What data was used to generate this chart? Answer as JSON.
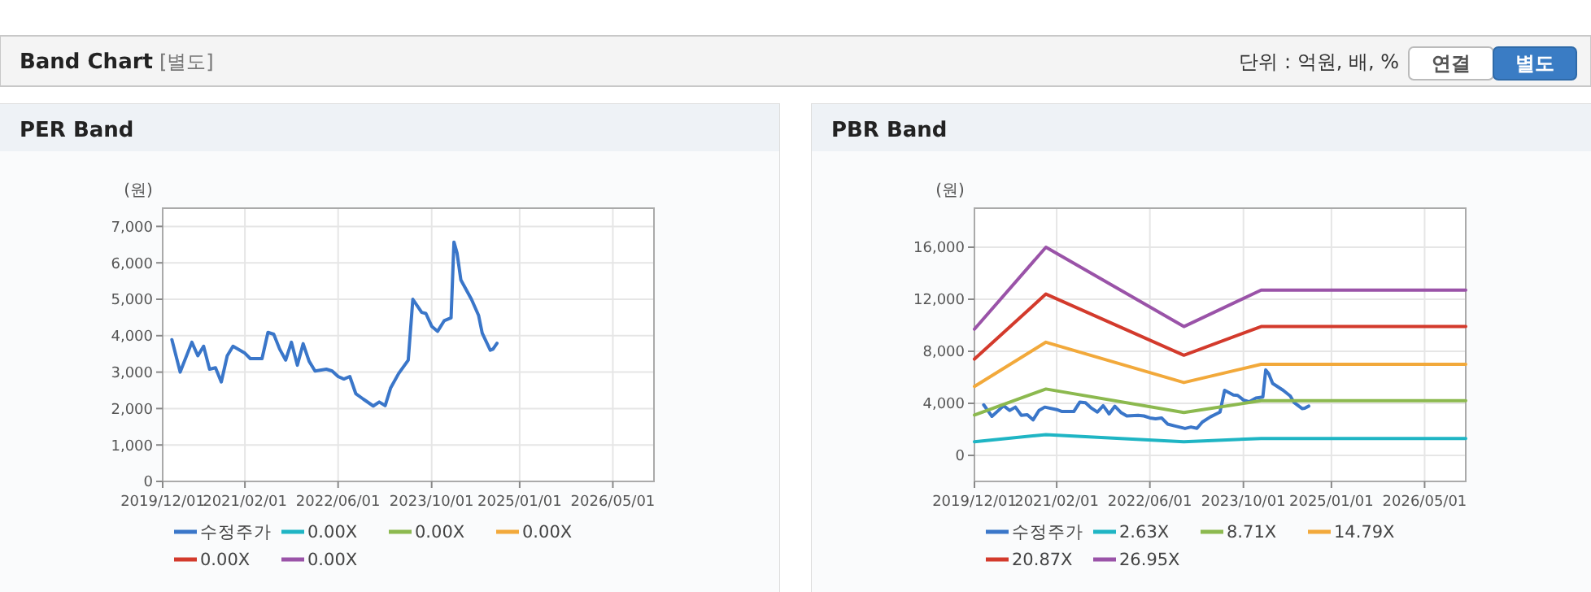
{
  "chart_data": [
    {
      "type": "other",
      "title": "Band Chart",
      "subtitle": "[별도]",
      "annotations": [
        "단위 : 억원, 배, %",
        "연결",
        "별도"
      ]
    },
    {
      "type": "line",
      "title": "PER Band",
      "ylabel": "(원)",
      "xlim": [
        "2019-12-01",
        "2026-12-01"
      ],
      "ylim": [
        0,
        7500
      ],
      "xticks": [
        {
          "value": "2019-12-01",
          "label": "2019/12/01"
        },
        {
          "value": "2021-02-01",
          "label": "2021/02/01"
        },
        {
          "value": "2022-06-01",
          "label": "2022/06/01"
        },
        {
          "value": "2023-10-01",
          "label": "2023/10/01"
        },
        {
          "value": "2025-01-01",
          "label": "2025/01/01"
        },
        {
          "value": "2026-05-01",
          "label": "2026/05/01"
        }
      ],
      "yticks": [
        {
          "value": 0,
          "label": "0"
        },
        {
          "value": 1000,
          "label": "1,000"
        },
        {
          "value": 2000,
          "label": "2,000"
        },
        {
          "value": 3000,
          "label": "3,000"
        },
        {
          "value": 4000,
          "label": "4,000"
        },
        {
          "value": 5000,
          "label": "5,000"
        },
        {
          "value": 6000,
          "label": "6,000"
        },
        {
          "value": 7000,
          "label": "7,000"
        }
      ],
      "grid": true,
      "legend": "bottom",
      "marker": "none",
      "line_style": "solid",
      "series": [
        {
          "name": "수정주가",
          "color": "#3a76c9",
          "x": [
            "2020-01-18",
            "2020-03-01",
            "2020-05-01",
            "2020-06-01",
            "2020-07-01",
            "2020-08-01",
            "2020-09-01",
            "2020-10-01",
            "2020-11-01",
            "2020-12-01",
            "2021-02-01",
            "2021-03-01",
            "2021-05-01",
            "2021-06-01",
            "2021-07-01",
            "2021-08-01",
            "2021-09-01",
            "2021-10-01",
            "2021-11-01",
            "2021-12-01",
            "2022-01-01",
            "2022-02-01",
            "2022-04-01",
            "2022-05-01",
            "2022-06-01",
            "2022-07-01",
            "2022-08-01",
            "2022-09-01",
            "2022-10-10",
            "2022-12-01",
            "2023-01-01",
            "2023-02-01",
            "2023-03-01",
            "2023-04-12",
            "2023-06-01",
            "2023-06-25",
            "2023-08-10",
            "2023-09-01",
            "2023-10-01",
            "2023-11-01",
            "2023-12-05",
            "2024-01-10",
            "2024-01-25",
            "2024-02-10",
            "2024-03-01",
            "2024-04-25",
            "2024-06-01",
            "2024-06-20",
            "2024-08-01",
            "2024-08-15",
            "2024-09-05"
          ],
          "values": [
            3890,
            3000,
            3820,
            3450,
            3710,
            3080,
            3120,
            2730,
            3450,
            3710,
            3520,
            3370,
            3370,
            4090,
            4040,
            3630,
            3330,
            3820,
            3190,
            3780,
            3300,
            3030,
            3080,
            3030,
            2880,
            2810,
            2880,
            2410,
            2260,
            2070,
            2180,
            2080,
            2560,
            2960,
            3330,
            5000,
            4640,
            4610,
            4260,
            4120,
            4410,
            4490,
            6570,
            6270,
            5530,
            5000,
            4560,
            4070,
            3600,
            3630,
            3790
          ]
        },
        {
          "name": "0.00X",
          "color": "#1fb5c4"
        },
        {
          "name": "0.00X",
          "color": "#8cb94f"
        },
        {
          "name": "0.00X",
          "color": "#f2a93b"
        },
        {
          "name": "0.00X",
          "color": "#d33a2c"
        },
        {
          "name": "0.00X",
          "color": "#9a53a8"
        }
      ]
    },
    {
      "type": "line",
      "title": "PBR Band",
      "ylabel": "(원)",
      "xlim": [
        "2019-12-01",
        "2026-12-01"
      ],
      "ylim": [
        -2000,
        19000
      ],
      "xticks": [
        {
          "value": "2019-12-01",
          "label": "2019/12/01"
        },
        {
          "value": "2021-02-01",
          "label": "2021/02/01"
        },
        {
          "value": "2022-06-01",
          "label": "2022/06/01"
        },
        {
          "value": "2023-10-01",
          "label": "2023/10/01"
        },
        {
          "value": "2025-01-01",
          "label": "2025/01/01"
        },
        {
          "value": "2026-05-01",
          "label": "2026/05/01"
        }
      ],
      "yticks": [
        {
          "value": 0,
          "label": "0"
        },
        {
          "value": 4000,
          "label": "4,000"
        },
        {
          "value": 8000,
          "label": "8,000"
        },
        {
          "value": 12000,
          "label": "12,000"
        },
        {
          "value": 16000,
          "label": "16,000"
        }
      ],
      "grid": true,
      "legend": "bottom",
      "marker": "none",
      "line_style": "solid",
      "series": [
        {
          "name": "수정주가",
          "color": "#3a76c9",
          "x": [
            "2020-01-18",
            "2020-03-01",
            "2020-05-01",
            "2020-06-01",
            "2020-07-01",
            "2020-08-01",
            "2020-09-01",
            "2020-10-01",
            "2020-11-01",
            "2020-12-01",
            "2021-02-01",
            "2021-03-01",
            "2021-05-01",
            "2021-06-01",
            "2021-07-01",
            "2021-08-01",
            "2021-09-01",
            "2021-10-01",
            "2021-11-01",
            "2021-12-01",
            "2022-01-01",
            "2022-02-01",
            "2022-04-01",
            "2022-05-01",
            "2022-06-01",
            "2022-07-01",
            "2022-08-01",
            "2022-09-01",
            "2022-10-10",
            "2022-12-01",
            "2023-01-01",
            "2023-02-01",
            "2023-03-01",
            "2023-04-12",
            "2023-06-01",
            "2023-06-25",
            "2023-08-10",
            "2023-09-01",
            "2023-10-01",
            "2023-11-01",
            "2023-12-05",
            "2024-01-10",
            "2024-01-25",
            "2024-02-10",
            "2024-03-01",
            "2024-04-25",
            "2024-06-01",
            "2024-06-20",
            "2024-08-01",
            "2024-08-15",
            "2024-09-05"
          ],
          "values": [
            3890,
            3000,
            3820,
            3450,
            3710,
            3080,
            3120,
            2730,
            3450,
            3710,
            3520,
            3370,
            3370,
            4090,
            4040,
            3630,
            3330,
            3820,
            3190,
            3780,
            3300,
            3030,
            3080,
            3030,
            2880,
            2810,
            2880,
            2410,
            2260,
            2070,
            2180,
            2080,
            2560,
            2960,
            3330,
            5000,
            4640,
            4610,
            4260,
            4120,
            4410,
            4490,
            6570,
            6270,
            5530,
            5000,
            4560,
            4070,
            3600,
            3630,
            3790
          ]
        },
        {
          "name": "2.63X",
          "color": "#1fb5c4",
          "x": [
            "2019-12-01",
            "2020-12-07",
            "2022-11-25",
            "2024-01-01",
            "2026-12-01"
          ],
          "values": [
            1050,
            1600,
            1050,
            1300,
            1300
          ]
        },
        {
          "name": "8.71X",
          "color": "#8cb94f",
          "x": [
            "2019-12-01",
            "2020-12-07",
            "2022-11-25",
            "2024-01-01",
            "2026-12-01"
          ],
          "values": [
            3100,
            5100,
            3300,
            4200,
            4200
          ]
        },
        {
          "name": "14.79X",
          "color": "#f2a93b",
          "x": [
            "2019-12-01",
            "2020-12-07",
            "2022-11-25",
            "2024-01-01",
            "2026-12-01"
          ],
          "values": [
            5300,
            8700,
            5600,
            7000,
            7000
          ]
        },
        {
          "name": "20.87X",
          "color": "#d33a2c",
          "x": [
            "2019-12-01",
            "2020-12-07",
            "2022-11-25",
            "2024-01-01",
            "2026-12-01"
          ],
          "values": [
            7400,
            12400,
            7700,
            9900,
            9900
          ]
        },
        {
          "name": "26.95X",
          "color": "#9a53a8",
          "x": [
            "2019-12-01",
            "2020-12-07",
            "2022-11-25",
            "2024-01-01",
            "2026-12-01"
          ],
          "values": [
            9700,
            16000,
            9900,
            12700,
            12700
          ]
        }
      ]
    }
  ]
}
